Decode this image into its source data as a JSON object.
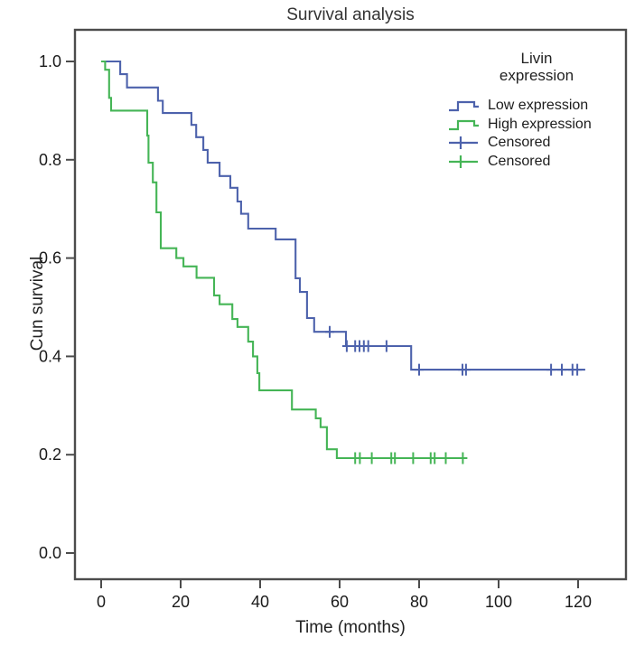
{
  "title": "Survival analysis",
  "axes": {
    "x": {
      "label": "Time (months)",
      "ticks": [
        0,
        20,
        40,
        60,
        80,
        100,
        120
      ]
    },
    "y": {
      "label": "Cun survival",
      "ticks": [
        "1.0",
        "0.8",
        "0.6",
        "0.4",
        "0.2",
        "0.0"
      ]
    }
  },
  "legend": {
    "title_line1": "Livin",
    "title_line2": "expression",
    "items": [
      {
        "label": "Low expression",
        "symbol": "step",
        "color_key": "low"
      },
      {
        "label": "High expression",
        "symbol": "step",
        "color_key": "high"
      },
      {
        "label": "Censored",
        "symbol": "plus",
        "color_key": "low"
      },
      {
        "label": "Censored",
        "symbol": "plus",
        "color_key": "high"
      }
    ]
  },
  "colors": {
    "low": "#4d62ac",
    "high": "#45b556",
    "frame": "#4c4c4c",
    "text": "#222222"
  },
  "chart_data": {
    "type": "line",
    "variant": "kaplan_meier_step",
    "title": "Survival analysis",
    "xlabel": "Time (months)",
    "ylabel": "Cun survival",
    "xlim": [
      0,
      130
    ],
    "ylim": [
      0.0,
      1.05
    ],
    "grid": false,
    "legend_position": "top-right-inside",
    "series": [
      {
        "name": "Low expression",
        "color_key": "low",
        "points": [
          [
            0,
            1.0
          ],
          [
            4.8,
            0.974
          ],
          [
            6.5,
            0.947
          ],
          [
            14.3,
            0.92
          ],
          [
            15.5,
            0.895
          ],
          [
            22.7,
            0.871
          ],
          [
            23.9,
            0.846
          ],
          [
            25.7,
            0.82
          ],
          [
            26.8,
            0.794
          ],
          [
            29.8,
            0.767
          ],
          [
            32.5,
            0.743
          ],
          [
            34.3,
            0.715
          ],
          [
            35.2,
            0.69
          ],
          [
            37,
            0.66
          ],
          [
            43.9,
            0.638
          ],
          [
            48.9,
            0.559
          ],
          [
            50,
            0.531
          ],
          [
            51.8,
            0.478
          ],
          [
            53.6,
            0.45
          ],
          [
            61.6,
            0.421
          ],
          [
            78,
            0.373
          ]
        ],
        "end_time": 121.8,
        "censored": [
          [
            57.5,
            0.45
          ],
          [
            61.8,
            0.421
          ],
          [
            63.9,
            0.421
          ],
          [
            65,
            0.421
          ],
          [
            66.1,
            0.421
          ],
          [
            67.2,
            0.421
          ],
          [
            71.8,
            0.421
          ],
          [
            80,
            0.373
          ],
          [
            90.9,
            0.373
          ],
          [
            91.8,
            0.373
          ],
          [
            113.2,
            0.373
          ],
          [
            115.9,
            0.373
          ],
          [
            118.6,
            0.373
          ],
          [
            119.8,
            0.373
          ]
        ]
      },
      {
        "name": "High expression",
        "color_key": "high",
        "points": [
          [
            0,
            1.0
          ],
          [
            1,
            0.983
          ],
          [
            2,
            0.926
          ],
          [
            2.5,
            0.9
          ],
          [
            11.6,
            0.849
          ],
          [
            11.9,
            0.794
          ],
          [
            13,
            0.754
          ],
          [
            13.9,
            0.693
          ],
          [
            15,
            0.62
          ],
          [
            18.9,
            0.6
          ],
          [
            20.7,
            0.583
          ],
          [
            24,
            0.56
          ],
          [
            28.4,
            0.524
          ],
          [
            29.8,
            0.506
          ],
          [
            33,
            0.476
          ],
          [
            34.3,
            0.46
          ],
          [
            37,
            0.43
          ],
          [
            38.2,
            0.4
          ],
          [
            39.3,
            0.366
          ],
          [
            39.8,
            0.331
          ],
          [
            48,
            0.292
          ],
          [
            54,
            0.274
          ],
          [
            55.2,
            0.256
          ],
          [
            56.8,
            0.211
          ],
          [
            59.3,
            0.193
          ]
        ],
        "end_time": 91,
        "censored": [
          [
            63.9,
            0.193
          ],
          [
            65.1,
            0.193
          ],
          [
            68.1,
            0.193
          ],
          [
            73,
            0.193
          ],
          [
            73.9,
            0.193
          ],
          [
            78.5,
            0.193
          ],
          [
            82.9,
            0.193
          ],
          [
            83.9,
            0.193
          ],
          [
            86.7,
            0.193
          ],
          [
            91,
            0.193
          ]
        ]
      }
    ]
  }
}
